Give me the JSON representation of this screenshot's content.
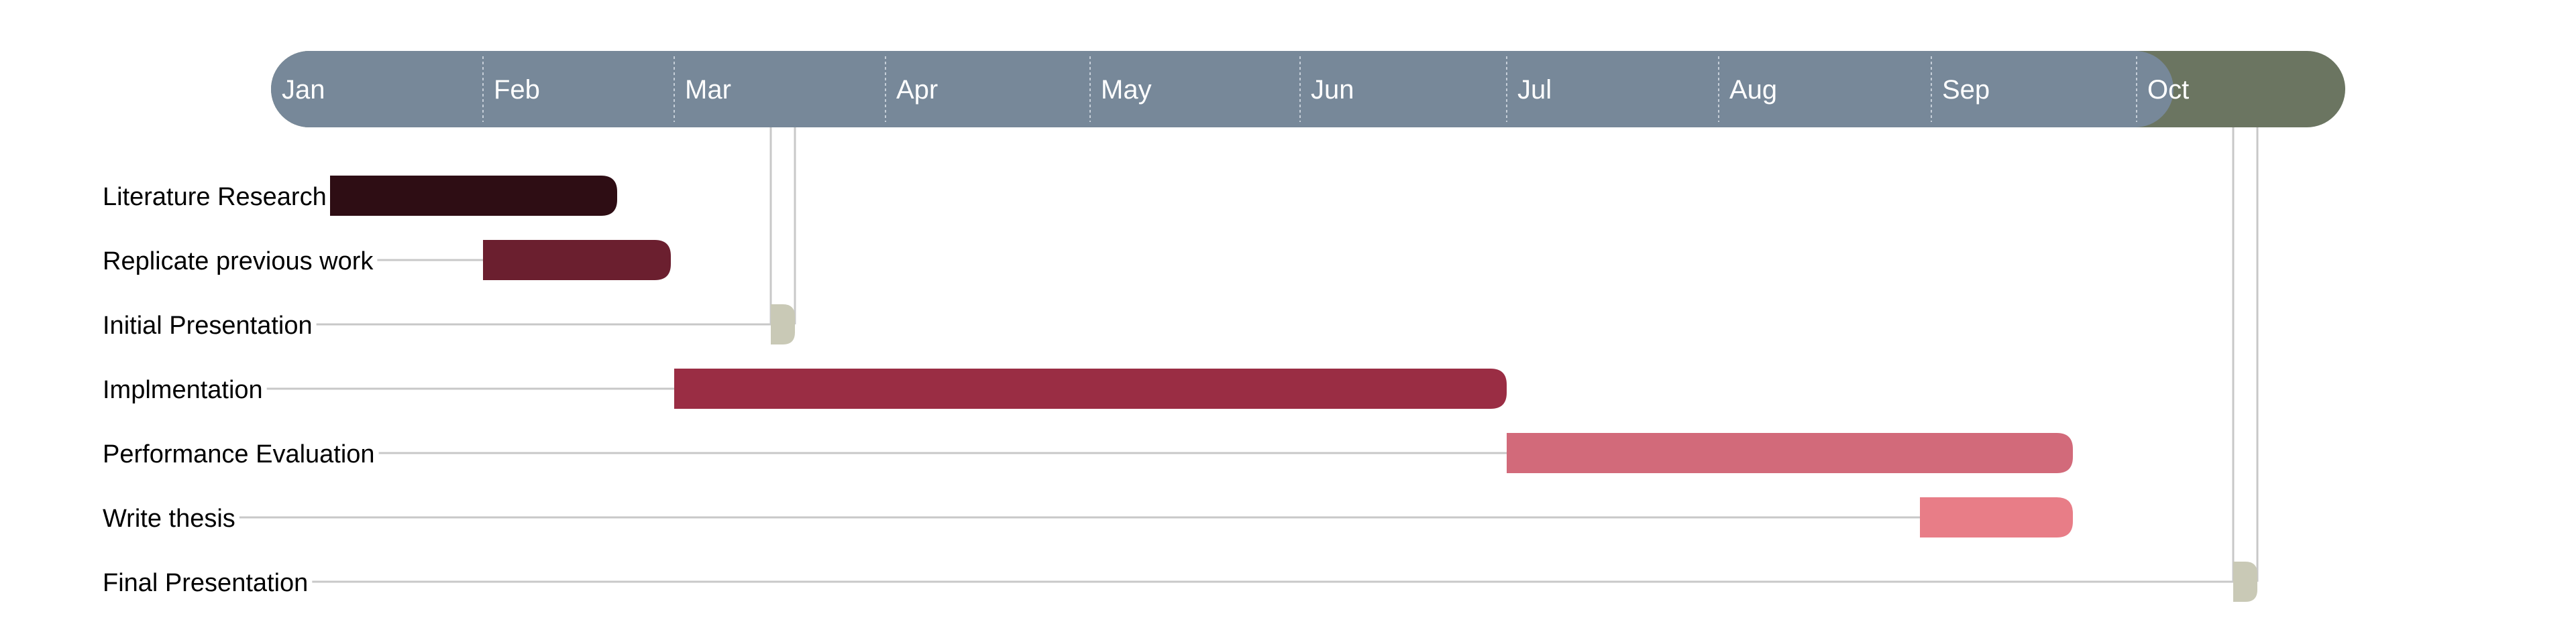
{
  "chart_data": {
    "type": "gantt",
    "title": "",
    "time_axis": {
      "unit": "month",
      "domain": [
        "Jan",
        "Oct"
      ],
      "ticks": [
        "Jan",
        "Feb",
        "Mar",
        "Apr",
        "May",
        "Jun",
        "Jul",
        "Aug",
        "Sep",
        "Oct"
      ],
      "gridlines": "dotted"
    },
    "tasks": [
      {
        "label": "Literature Research",
        "start": "Jan",
        "end": "Feb",
        "color": "#2e0d14"
      },
      {
        "label": "Replicate previous work",
        "start": "Feb",
        "end": "Mar",
        "color": "#6b1f2f"
      },
      {
        "label": "Initial Presentation",
        "start": "Mar",
        "end": "Mar",
        "milestone": true,
        "color": "#c9c9b6"
      },
      {
        "label": "Implmentation",
        "start": "Mar",
        "end": "Jul",
        "color": "#9a2d44"
      },
      {
        "label": "Performance Evaluation",
        "start": "Jul",
        "end": "Sep",
        "color": "#d26a7a"
      },
      {
        "label": "Write thesis",
        "start": "Sep",
        "end": "Sep",
        "color": "#e87d87"
      },
      {
        "label": "Final Presentation",
        "start": "Oct",
        "end": "Oct",
        "milestone": true,
        "color": "#c9c9b6"
      }
    ],
    "header_colors": {
      "main": "#778899",
      "end": "#6b7561",
      "tick_text": "#ffffff"
    },
    "label_color": "#000000",
    "leader_line_color": "#c8c8c8"
  }
}
